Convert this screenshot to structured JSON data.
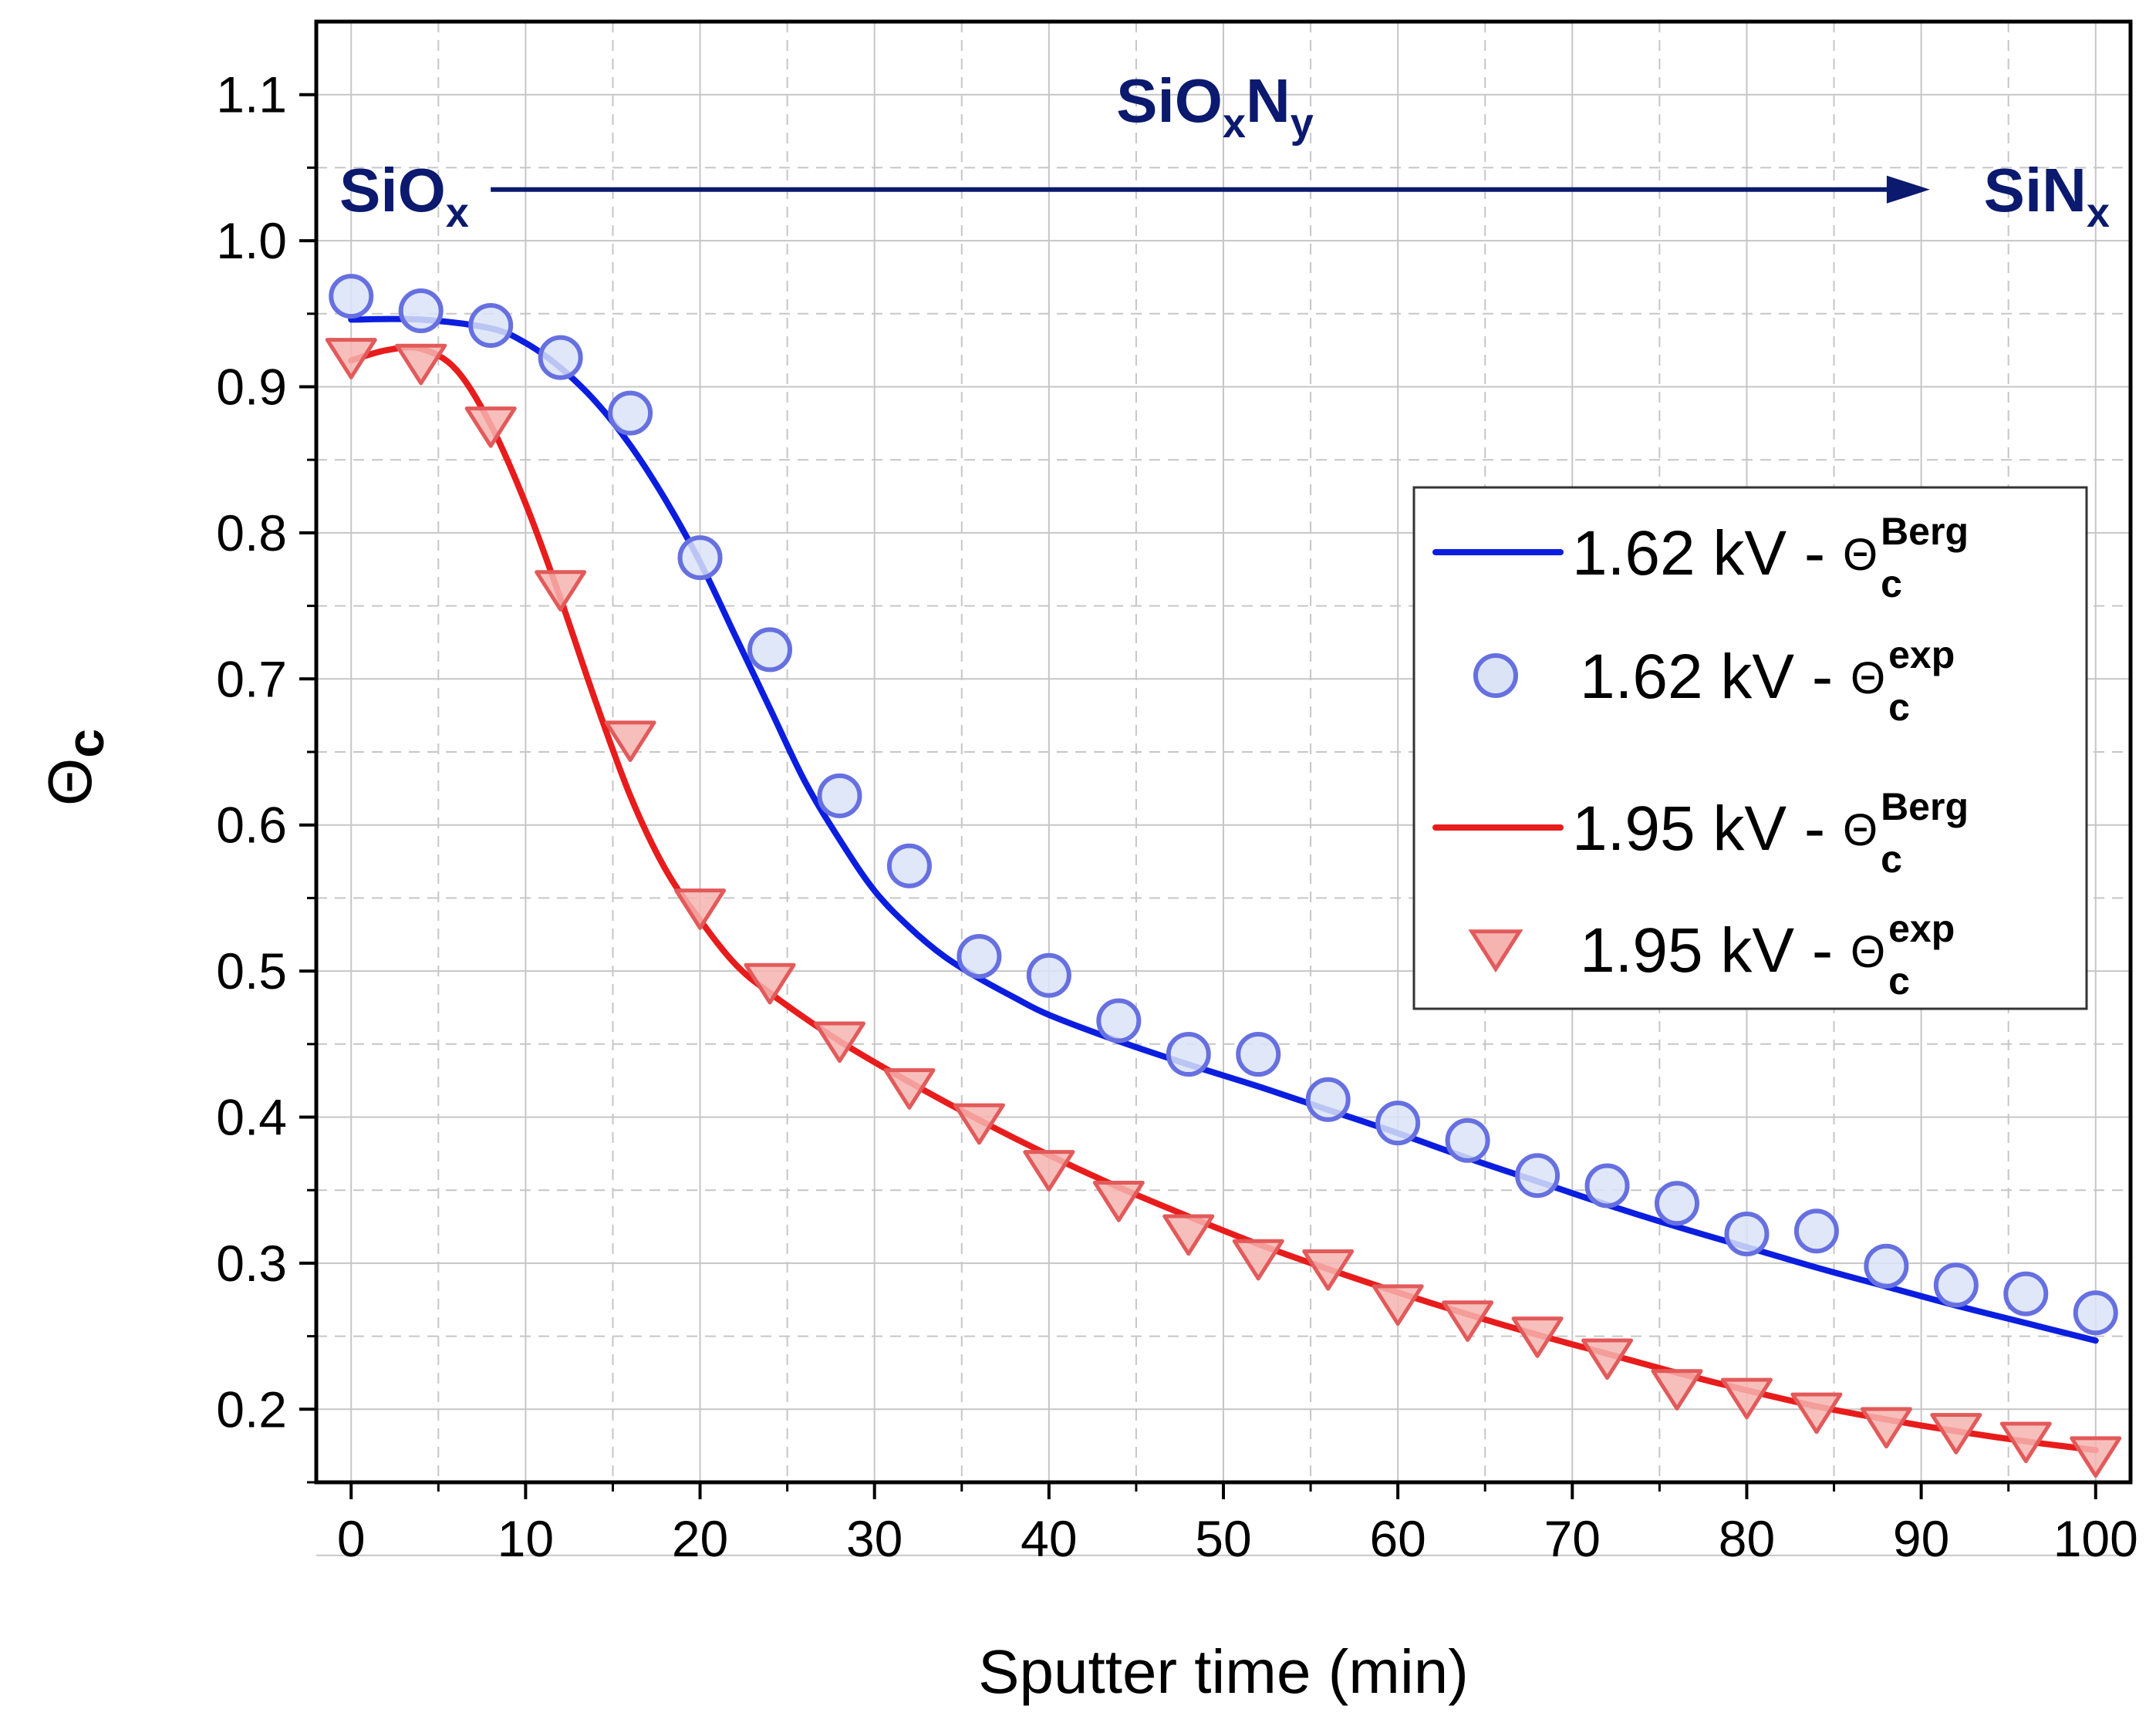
{
  "chart_data": {
    "type": "line",
    "title": "",
    "xlabel": "Sputter time (min)",
    "ylabel": "Θ",
    "ylabel_sub": "c",
    "xlim": [
      -2,
      102
    ],
    "ylim": [
      0.15,
      1.15
    ],
    "xticks": [
      0,
      10,
      20,
      30,
      40,
      50,
      60,
      70,
      80,
      90,
      100
    ],
    "yticks": [
      0.2,
      0.3,
      0.4,
      0.5,
      0.6,
      0.7,
      0.8,
      0.9,
      1.0,
      1.1
    ],
    "grid": true,
    "legend_position": "center-right",
    "colors": {
      "blue_line": "#0b1ee0",
      "blue_marker_fill": "#dbe3f7",
      "blue_marker_edge": "#6670e0",
      "red_line": "#e81c1c",
      "red_marker_fill": "#f6b4b0",
      "red_marker_edge": "#e25a5a",
      "annotation": "#0b1a6e",
      "grid": "#c6c6c6"
    },
    "annotations": {
      "left": {
        "main": "SiO",
        "sub": "x"
      },
      "middle": {
        "main": "SiO",
        "sub1": "x",
        "main2": "N",
        "sub2": "y"
      },
      "right": {
        "main": "SiN",
        "sub": "x"
      },
      "arrow_from_x": 8,
      "arrow_to_x": 90.5,
      "arrow_y": 1.035
    },
    "series": [
      {
        "name": "1.62 kV - Θc Berg",
        "legend_prefix": "1.62 kV - ",
        "legend_symbol": "Θ",
        "legend_sub": "c",
        "legend_sup": "Berg",
        "kind": "line",
        "color_key": "blue_line",
        "x": [
          0,
          4,
          8,
          10,
          12,
          14,
          16,
          18,
          20,
          22,
          24,
          26,
          28,
          30,
          32,
          34,
          36,
          38,
          40,
          44,
          48,
          52,
          56,
          60,
          64,
          68,
          72,
          76,
          80,
          84,
          88,
          92,
          96,
          100
        ],
        "y": [
          0.946,
          0.946,
          0.94,
          0.93,
          0.913,
          0.89,
          0.86,
          0.823,
          0.78,
          0.73,
          0.68,
          0.63,
          0.59,
          0.555,
          0.53,
          0.51,
          0.495,
          0.482,
          0.47,
          0.452,
          0.436,
          0.421,
          0.405,
          0.389,
          0.372,
          0.356,
          0.34,
          0.325,
          0.311,
          0.297,
          0.284,
          0.271,
          0.259,
          0.247
        ]
      },
      {
        "name": "1.62 kV - Θc exp",
        "legend_prefix": "1.62 kV - ",
        "legend_symbol": "Θ",
        "legend_sub": "c",
        "legend_sup": "exp",
        "kind": "scatter",
        "marker": "circle",
        "color_key": "blue_marker",
        "x": [
          0,
          4,
          8,
          12,
          16,
          20,
          24,
          28,
          32,
          36,
          40,
          44,
          48,
          52,
          56,
          60,
          64,
          68,
          72,
          76,
          80,
          84,
          88,
          92,
          96,
          100
        ],
        "y": [
          0.962,
          0.952,
          0.942,
          0.92,
          0.882,
          0.783,
          0.72,
          0.62,
          0.572,
          0.51,
          0.497,
          0.466,
          0.443,
          0.443,
          0.412,
          0.396,
          0.384,
          0.36,
          0.353,
          0.341,
          0.32,
          0.322,
          0.298,
          0.285,
          0.279,
          0.266
        ]
      },
      {
        "name": "1.95 kV - Θc Berg",
        "legend_prefix": "1.95 kV - ",
        "legend_symbol": "Θ",
        "legend_sub": "c",
        "legend_sup": "Berg",
        "kind": "line",
        "color_key": "red_line",
        "x": [
          0,
          2,
          4,
          6,
          8,
          10,
          12,
          14,
          16,
          18,
          20,
          22,
          24,
          28,
          32,
          36,
          40,
          44,
          48,
          52,
          56,
          60,
          64,
          68,
          72,
          76,
          80,
          84,
          88,
          92,
          96,
          100
        ],
        "y": [
          0.918,
          0.925,
          0.926,
          0.912,
          0.874,
          0.82,
          0.755,
          0.685,
          0.62,
          0.57,
          0.535,
          0.505,
          0.485,
          0.452,
          0.424,
          0.398,
          0.374,
          0.352,
          0.332,
          0.313,
          0.296,
          0.28,
          0.265,
          0.251,
          0.238,
          0.225,
          0.213,
          0.202,
          0.193,
          0.185,
          0.178,
          0.172
        ]
      },
      {
        "name": "1.95 kV - Θc exp",
        "legend_prefix": "1.95 kV - ",
        "legend_symbol": "Θ",
        "legend_sub": "c",
        "legend_sup": "exp",
        "kind": "scatter",
        "marker": "triangle-down",
        "color_key": "red_marker",
        "x": [
          0,
          4,
          8,
          12,
          16,
          20,
          24,
          28,
          32,
          36,
          40,
          44,
          48,
          52,
          56,
          60,
          64,
          68,
          72,
          76,
          80,
          84,
          88,
          92,
          96,
          100
        ],
        "y": [
          0.922,
          0.918,
          0.875,
          0.763,
          0.66,
          0.545,
          0.494,
          0.454,
          0.422,
          0.398,
          0.366,
          0.345,
          0.322,
          0.305,
          0.298,
          0.274,
          0.263,
          0.252,
          0.237,
          0.216,
          0.21,
          0.2,
          0.19,
          0.186,
          0.18,
          0.17
        ]
      }
    ]
  }
}
